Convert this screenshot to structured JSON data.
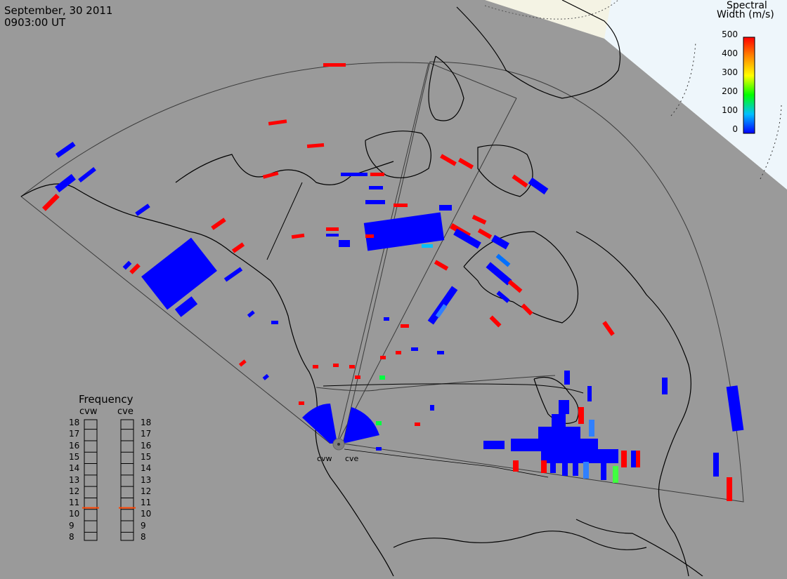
{
  "header": {
    "date": "September, 30 2011",
    "time": "0903:00 UT"
  },
  "colorbar": {
    "title_line1": "Spectral",
    "title_line2": "Width (m/s)",
    "ticks": [
      "500",
      "400",
      "300",
      "200",
      "100",
      "0"
    ],
    "range": [
      0,
      500
    ],
    "colors": [
      "#0000ff",
      "#00ffff",
      "#00ff00",
      "#ffff00",
      "#ff8800",
      "#ff0000"
    ]
  },
  "frequency_panel": {
    "title": "Frequency",
    "radars": [
      {
        "name": "cvw",
        "value": 10.6
      },
      {
        "name": "cve",
        "value": 10.6
      }
    ],
    "ticks": [
      "18",
      "17",
      "16",
      "15",
      "14",
      "13",
      "12",
      "11",
      "10",
      "9",
      "8"
    ],
    "range": [
      8,
      18
    ],
    "marker_color": "#ff4400"
  },
  "sites": {
    "cvw": "cvw",
    "cve": "cve"
  },
  "colors": {
    "background": "#9a9a9a",
    "coastline": "#000000",
    "fov_outline": "#404040",
    "daylight": "#f5f5e6",
    "polar_sky": "#eef6fc"
  }
}
